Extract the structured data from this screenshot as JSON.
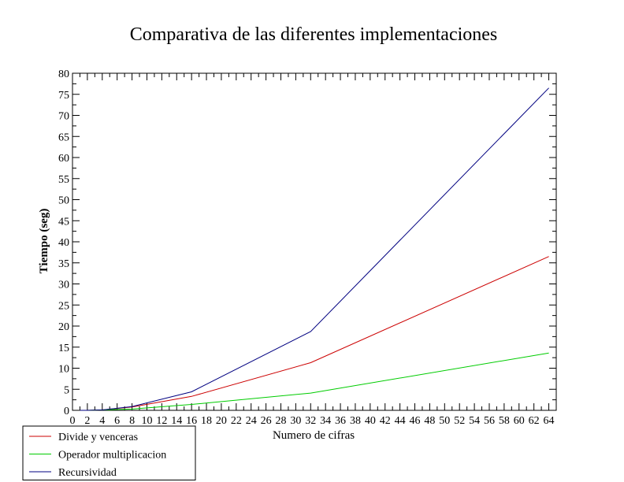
{
  "chart_data": {
    "type": "line",
    "title": "Comparativa de las diferentes implementaciones",
    "xlabel": "Numero de cifras",
    "ylabel": "Tiempo (seg)",
    "xlim": [
      0,
      65
    ],
    "ylim": [
      0,
      80
    ],
    "x_ticks": [
      0,
      2,
      4,
      6,
      8,
      10,
      12,
      14,
      16,
      18,
      20,
      22,
      24,
      26,
      28,
      30,
      32,
      34,
      36,
      38,
      40,
      42,
      44,
      46,
      48,
      50,
      52,
      54,
      56,
      58,
      60,
      62,
      64
    ],
    "y_ticks": [
      0,
      5,
      10,
      15,
      20,
      25,
      30,
      35,
      40,
      45,
      50,
      55,
      60,
      65,
      70,
      75,
      80
    ],
    "grid": false,
    "legend_position": "bottom-left",
    "series": [
      {
        "name": "Divide y venceras",
        "color": "#cc0000",
        "x": [
          1,
          2,
          4,
          8,
          16,
          32,
          64
        ],
        "y": [
          0,
          0,
          0.1,
          0.8,
          3.3,
          11.3,
          36.5
        ]
      },
      {
        "name": "Operador multiplicacion",
        "color": "#00cc00",
        "x": [
          1,
          2,
          4,
          8,
          16,
          32,
          64
        ],
        "y": [
          0,
          0,
          0.1,
          0.3,
          1.4,
          4.1,
          13.6
        ]
      },
      {
        "name": "Recursividad",
        "color": "#000080",
        "x": [
          1,
          2,
          4,
          8,
          16,
          32,
          64
        ],
        "y": [
          0,
          0,
          0.1,
          0.9,
          4.4,
          18.7,
          76.5
        ]
      }
    ]
  }
}
